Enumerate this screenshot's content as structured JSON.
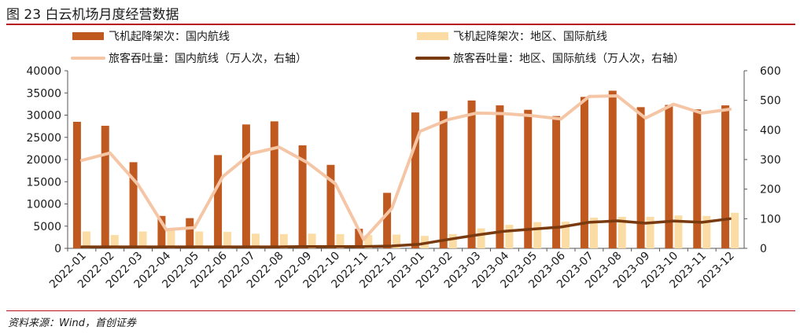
{
  "header": {
    "title": "图 23 白云机场月度经营数据"
  },
  "footer": {
    "source": "资料来源：Wind，首创证券"
  },
  "colors": {
    "domestic_flights": "#c0591f",
    "regional_flights": "#fbdca4",
    "domestic_passengers": "#f5c6a5",
    "regional_passengers": "#7a3a10",
    "rule": "#b5121b"
  },
  "chart_data": {
    "type": "bar",
    "categories": [
      "2022-01",
      "2022-02",
      "2022-03",
      "2022-04",
      "2022-05",
      "2022-06",
      "2022-07",
      "2022-08",
      "2022-09",
      "2022-10",
      "2022-11",
      "2022-12",
      "2023-01",
      "2023-02",
      "2023-03",
      "2023-04",
      "2023-05",
      "2023-06",
      "2023-07",
      "2023-08",
      "2023-09",
      "2023-10",
      "2023-11",
      "2023-12"
    ],
    "left_axis": {
      "ylim": [
        0,
        40000
      ],
      "ticks": [
        0,
        5000,
        10000,
        15000,
        20000,
        25000,
        30000,
        35000,
        40000
      ]
    },
    "right_axis": {
      "ylim": [
        0,
        600
      ],
      "ticks": [
        0,
        100,
        200,
        300,
        400,
        500,
        600
      ]
    },
    "legend": [
      {
        "name": "飞机起降架次：国内航线",
        "kind": "bar"
      },
      {
        "name": "飞机起降架次：地区、国际航线",
        "kind": "bar"
      },
      {
        "name": "旅客吞吐量：国内航线（万人次，右轴）",
        "kind": "line"
      },
      {
        "name": "旅客吞吐量：地区、国际航线（万人次，右轴）",
        "kind": "line"
      }
    ],
    "series": [
      {
        "name": "飞机起降架次：国内航线",
        "kind": "bar",
        "axis": "left",
        "values": [
          28500,
          27600,
          19400,
          7300,
          6800,
          21000,
          27900,
          28600,
          23200,
          18800,
          4400,
          12500,
          30600,
          30900,
          33300,
          32200,
          31200,
          29800,
          34100,
          35500,
          31800,
          32300,
          31300,
          32200
        ]
      },
      {
        "name": "飞机起降架次：地区、国际航线",
        "kind": "bar",
        "axis": "left",
        "values": [
          3800,
          3000,
          3800,
          4000,
          3800,
          3700,
          3300,
          3200,
          3300,
          3200,
          3000,
          3100,
          2800,
          3200,
          4500,
          5300,
          5900,
          6000,
          6900,
          7100,
          7100,
          7400,
          7300,
          8000
        ]
      },
      {
        "name": "旅客吞吐量：国内航线（万人次，右轴）",
        "kind": "line",
        "axis": "right",
        "values": [
          297,
          322,
          215,
          63,
          70,
          242,
          320,
          342,
          290,
          218,
          30,
          135,
          395,
          435,
          457,
          455,
          448,
          437,
          513,
          515,
          440,
          487,
          457,
          470
        ]
      },
      {
        "name": "旅客吞吐量：地区、国际航线（万人次，右轴）",
        "kind": "line",
        "axis": "right",
        "values": [
          5,
          5,
          5,
          5,
          5,
          5,
          5,
          5,
          6,
          6,
          6,
          8,
          14,
          30,
          45,
          58,
          65,
          72,
          88,
          93,
          85,
          92,
          88,
          100
        ]
      }
    ]
  }
}
